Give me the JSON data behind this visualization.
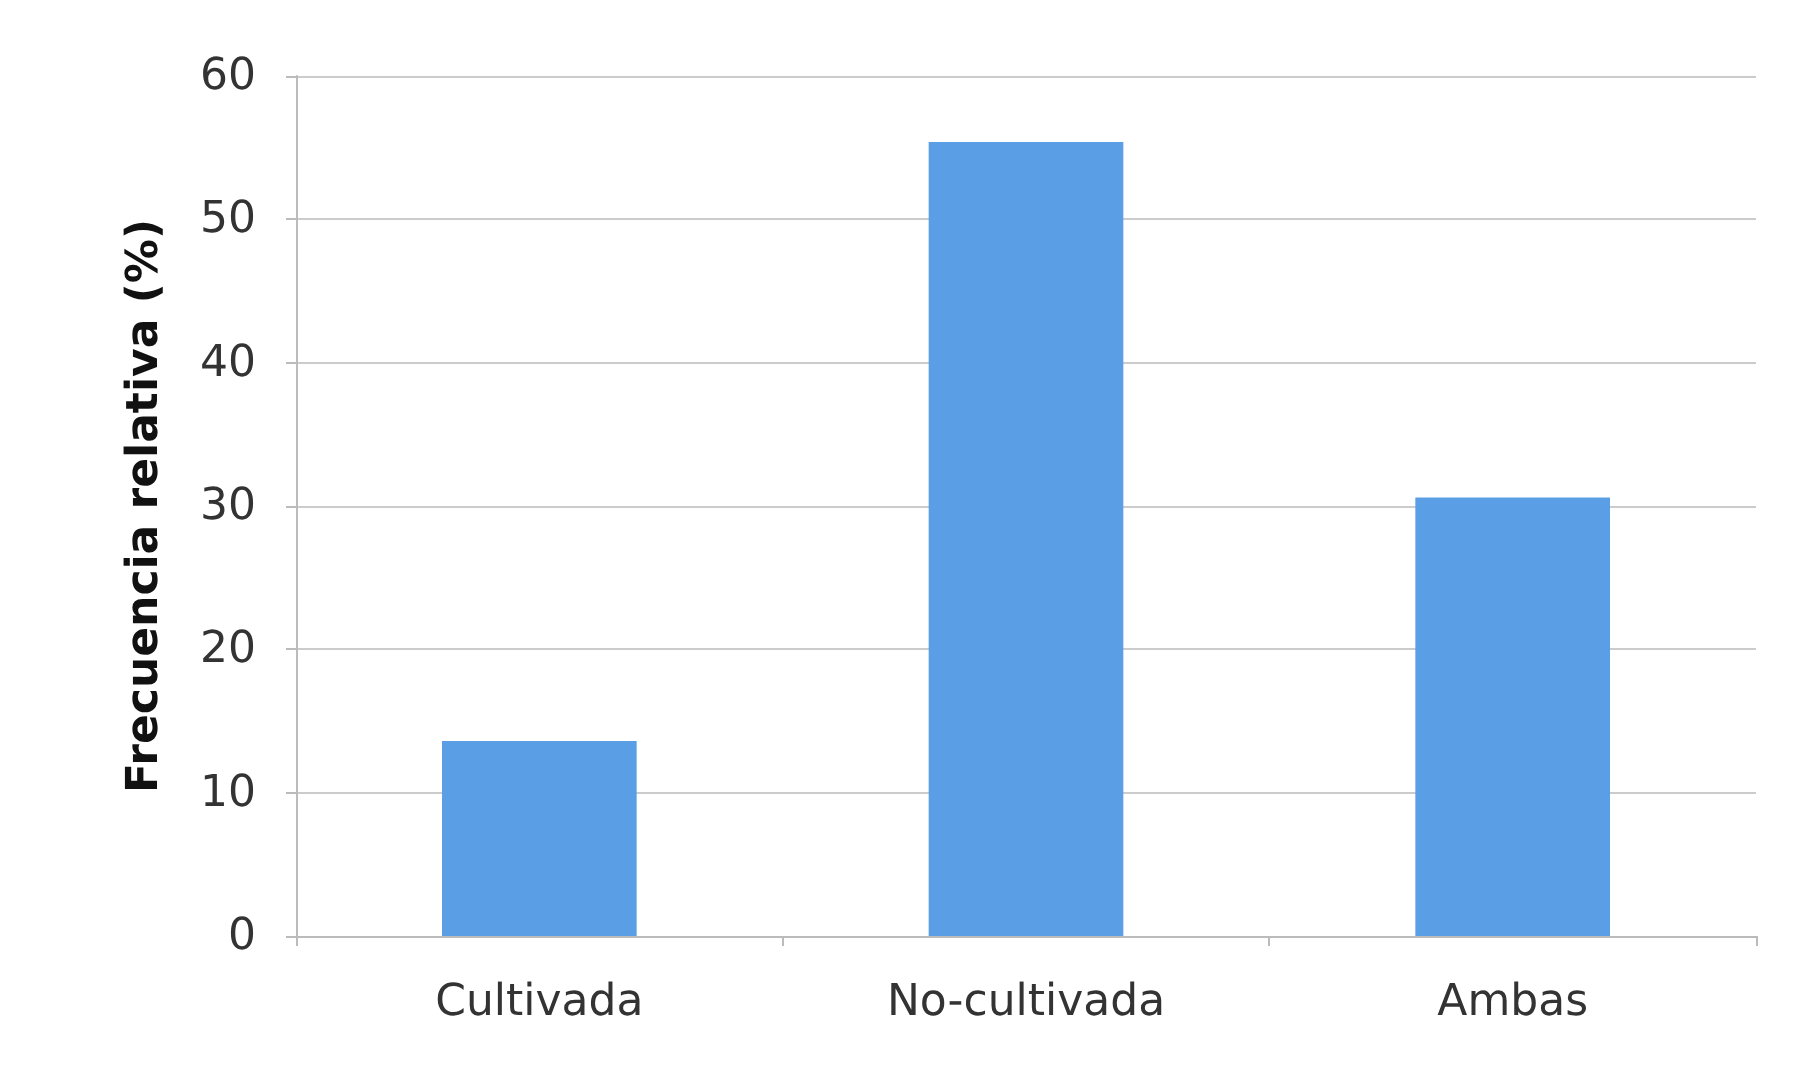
{
  "chart_data": {
    "type": "bar",
    "ylabel": "Frecuencia relativa (%)",
    "categories": [
      "Cultivada",
      "No-cultivada",
      "Ambas"
    ],
    "values": [
      13.6,
      55.4,
      30.6
    ],
    "color": "#5a9fe6",
    "ylim": [
      0,
      60
    ],
    "yticks": [
      0,
      10,
      20,
      30,
      40,
      50,
      60
    ],
    "grid": "y"
  }
}
